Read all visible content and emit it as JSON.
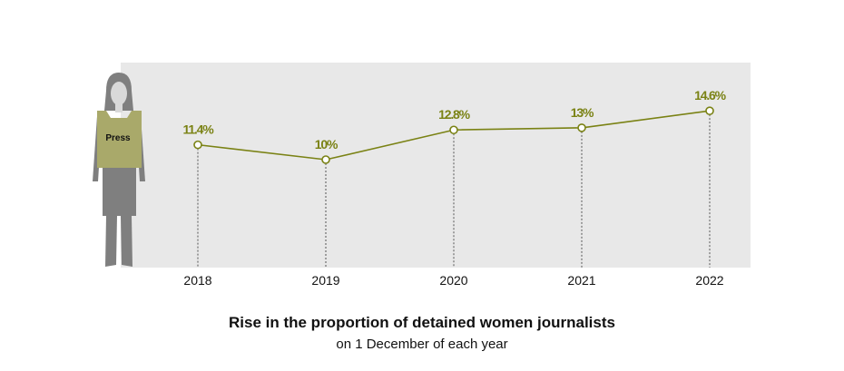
{
  "chart_data": {
    "type": "line",
    "title": "Rise in the proportion of detained women journalists",
    "subtitle": "on 1 December of each year",
    "categories": [
      "2018",
      "2019",
      "2020",
      "2021",
      "2022"
    ],
    "values": [
      11.4,
      10,
      12.8,
      13,
      14.6
    ],
    "data_labels": [
      "11.4%",
      "10%",
      "12.8%",
      "13%",
      "14.6%"
    ],
    "unit": "%",
    "grid": false,
    "colors": {
      "line": "#7a8214",
      "panel": "#e8e8e8",
      "vest": "#a9a96a",
      "figure": "#7f7f7f"
    }
  },
  "illustration": {
    "vest_text": "Press"
  }
}
